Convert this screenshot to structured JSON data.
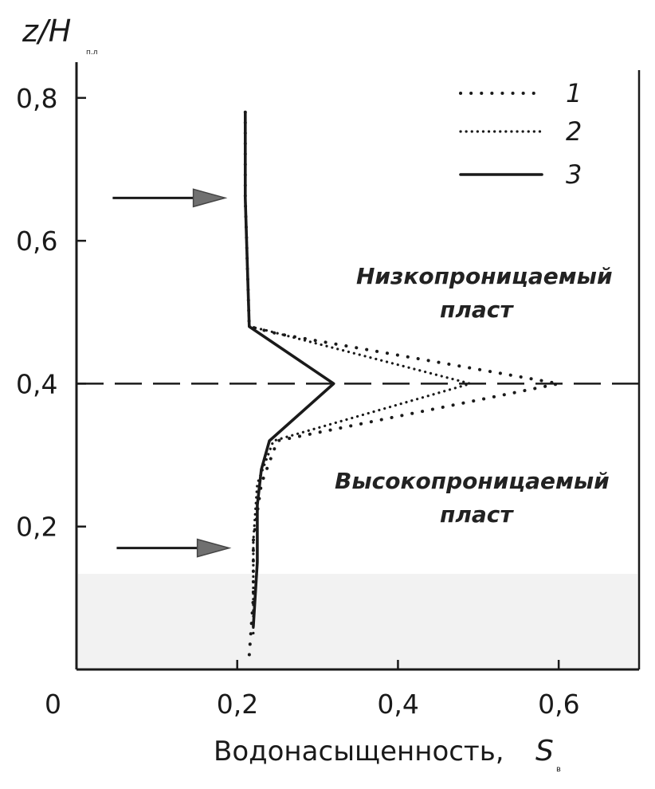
{
  "chart_data": {
    "type": "line",
    "xlabel": "Водонасыщенность,",
    "xlabel_symbol": "S",
    "xlabel_subscript": "в",
    "ylabel_symbol": "z/H",
    "ylabel_subscript": "п.л",
    "xlim": [
      0,
      0.7
    ],
    "ylim": [
      0,
      0.85
    ],
    "x_ticks": [
      "0",
      "0,2",
      "0,4",
      "0,6"
    ],
    "x_tick_values": [
      0,
      0.2,
      0.4,
      0.6
    ],
    "y_ticks": [
      "0,2",
      "0,4",
      "0,6",
      "0,8"
    ],
    "y_tick_values": [
      0.2,
      0.4,
      0.6,
      0.8
    ],
    "legend_position": "top-right",
    "series": [
      {
        "name": "1",
        "style": "dotted-sparse",
        "points": [
          [
            0.21,
            0.78
          ],
          [
            0.21,
            0.66
          ],
          [
            0.215,
            0.48
          ],
          [
            0.25,
            0.47
          ],
          [
            0.6,
            0.4
          ],
          [
            0.25,
            0.32
          ],
          [
            0.23,
            0.26
          ],
          [
            0.22,
            0.18
          ],
          [
            0.22,
            0.1
          ],
          [
            0.215,
            0.02
          ]
        ]
      },
      {
        "name": "2",
        "style": "dotted-dense",
        "points": [
          [
            0.21,
            0.78
          ],
          [
            0.21,
            0.66
          ],
          [
            0.215,
            0.48
          ],
          [
            0.235,
            0.475
          ],
          [
            0.49,
            0.4
          ],
          [
            0.245,
            0.32
          ],
          [
            0.225,
            0.26
          ],
          [
            0.22,
            0.18
          ],
          [
            0.22,
            0.1
          ],
          [
            0.22,
            0.05
          ]
        ]
      },
      {
        "name": "3",
        "style": "solid",
        "points": [
          [
            0.21,
            0.78
          ],
          [
            0.21,
            0.66
          ],
          [
            0.215,
            0.48
          ],
          [
            0.32,
            0.4
          ],
          [
            0.24,
            0.32
          ],
          [
            0.23,
            0.28
          ],
          [
            0.225,
            0.23
          ],
          [
            0.225,
            0.15
          ],
          [
            0.22,
            0.06
          ]
        ]
      }
    ],
    "reference_line": {
      "y": 0.4,
      "style": "dashed"
    },
    "arrows": [
      {
        "y": 0.66,
        "x_from": 0.045,
        "x_to": 0.185,
        "direction": "right"
      },
      {
        "y": 0.17,
        "x_from": 0.05,
        "x_to": 0.19,
        "direction": "right"
      }
    ],
    "annotations": [
      {
        "lines": [
          "Низкопроницаемый",
          "пласт"
        ],
        "region": "upper layer"
      },
      {
        "lines": [
          "Высокопроницаемый",
          "пласт"
        ],
        "region": "lower layer"
      }
    ],
    "colors": {
      "line": "#1a1a1a",
      "arrow_head": "#707070",
      "axis": "#1a1a1a",
      "shading": "#f2f2f2"
    }
  }
}
